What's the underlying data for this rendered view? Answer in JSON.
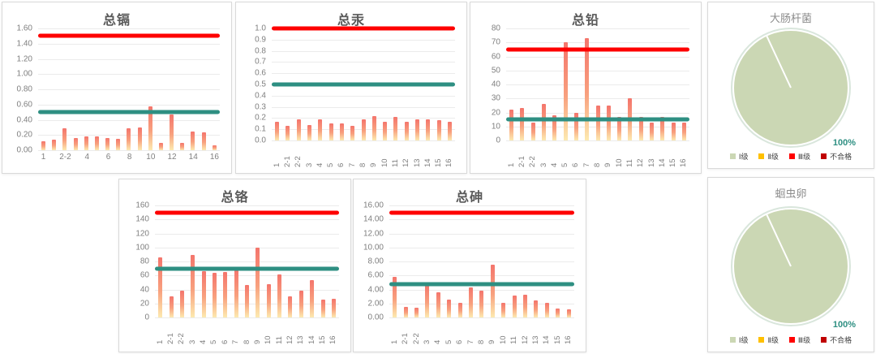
{
  "colors": {
    "red_line": "#fe0000",
    "green_line": "#2e8f82",
    "bar_top": "#f4756c",
    "bar_mid": "#f8a07e",
    "bar_bottom": "#fdeab0",
    "pie_fill": "#cbd7b4",
    "pie_ring": "#d9e6dc",
    "percent_text": "#2e8f82",
    "level1": "#cbd7b4",
    "level2": "#ffc000",
    "level3": "#ff0000",
    "fail": "#c00000"
  },
  "chart_data": [
    {
      "type": "bar",
      "title": "总镉",
      "categories": [
        "1",
        "2-1",
        "2-2",
        "3",
        "4",
        "5",
        "6",
        "7",
        "8",
        "9",
        "10",
        "11",
        "12",
        "13",
        "14",
        "15",
        "16"
      ],
      "values": [
        0.12,
        0.14,
        0.29,
        0.16,
        0.18,
        0.18,
        0.16,
        0.15,
        0.29,
        0.3,
        0.58,
        0.1,
        0.47,
        0.1,
        0.25,
        0.23,
        0.06
      ],
      "red_line": 1.5,
      "green_line": 0.5,
      "ylim": [
        0,
        1.6
      ],
      "yticks": [
        "1.60",
        "1.40",
        "1.20",
        "1.00",
        "0.80",
        "0.60",
        "0.40",
        "0.20",
        "0.00"
      ],
      "xtick_display": [
        "1",
        "",
        "2-2",
        "",
        "4",
        "",
        "6",
        "",
        "8",
        "",
        "10",
        "",
        "12",
        "",
        "14",
        "",
        "16"
      ],
      "rotated_xlabels": false,
      "grid": true,
      "legend_position": "none"
    },
    {
      "type": "bar",
      "title": "总汞",
      "categories": [
        "1",
        "2-1",
        "2-2",
        "3",
        "4",
        "5",
        "6",
        "7",
        "8",
        "9",
        "10",
        "11",
        "12",
        "13",
        "14",
        "15",
        "16"
      ],
      "values": [
        0.17,
        0.13,
        0.19,
        0.14,
        0.19,
        0.15,
        0.15,
        0.13,
        0.19,
        0.22,
        0.17,
        0.21,
        0.17,
        0.19,
        0.19,
        0.18,
        0.17
      ],
      "red_line": 1.0,
      "green_line": 0.5,
      "ylim": [
        0,
        1.0
      ],
      "yticks": [
        "1.0",
        "0.9",
        "0.8",
        "0.7",
        "0.6",
        "0.5",
        "0.4",
        "0.3",
        "0.2",
        "0.1",
        "0.0"
      ],
      "rotated_xlabels": true,
      "grid": true,
      "legend_position": "none"
    },
    {
      "type": "bar",
      "title": "总铅",
      "categories": [
        "1",
        "2-1",
        "2-2",
        "3",
        "4",
        "5",
        "6",
        "7",
        "8",
        "9",
        "10",
        "11",
        "12",
        "13",
        "14",
        "15",
        "16"
      ],
      "values": [
        22,
        23,
        13,
        26,
        18,
        70,
        20,
        73,
        25,
        25,
        17,
        30,
        17,
        13,
        17,
        13,
        13
      ],
      "red_line": 65,
      "green_line": 15,
      "ylim": [
        0,
        80
      ],
      "yticks": [
        "80",
        "70",
        "60",
        "50",
        "40",
        "30",
        "20",
        "10",
        "0"
      ],
      "rotated_xlabels": true,
      "grid": true,
      "legend_position": "none"
    },
    {
      "type": "bar",
      "title": "总铬",
      "categories": [
        "1",
        "2-1",
        "2-2",
        "3",
        "4",
        "5",
        "6",
        "7",
        "8",
        "9",
        "10",
        "11",
        "12",
        "13",
        "14",
        "15",
        "16"
      ],
      "values": [
        86,
        30,
        38,
        89,
        66,
        64,
        65,
        68,
        46,
        100,
        48,
        62,
        30,
        38,
        53,
        26,
        27
      ],
      "red_line": 150,
      "green_line": 70,
      "ylim": [
        0,
        160
      ],
      "yticks": [
        "160",
        "140",
        "120",
        "100",
        "80",
        "60",
        "40",
        "20",
        "0"
      ],
      "rotated_xlabels": true,
      "grid": true,
      "legend_position": "none"
    },
    {
      "type": "bar",
      "title": "总砷",
      "categories": [
        "1",
        "2-1",
        "2-2",
        "3",
        "4",
        "5",
        "6",
        "7",
        "8",
        "9",
        "10",
        "11",
        "12",
        "13",
        "14",
        "15",
        "16"
      ],
      "values": [
        5.8,
        1.5,
        1.4,
        4.6,
        3.6,
        2.6,
        2.1,
        4.3,
        3.8,
        7.5,
        2.1,
        3.1,
        3.3,
        2.4,
        2.1,
        1.3,
        1.2
      ],
      "red_line": 15,
      "green_line": 4.7,
      "ylim": [
        0,
        16
      ],
      "yticks": [
        "16.00",
        "14.00",
        "12.00",
        "10.00",
        "8.00",
        "6.00",
        "4.00",
        "2.00",
        "0.00"
      ],
      "rotated_xlabels": true,
      "grid": true,
      "legend_position": "none"
    },
    {
      "type": "pie",
      "title": "大肠杆菌",
      "categories": [
        "Ⅰ级",
        "Ⅱ级",
        "Ⅲ级",
        "不合格"
      ],
      "values": [
        100,
        0,
        0,
        0
      ],
      "percent": "100%",
      "divider_angle_deg": -25,
      "legend_position": "bottom",
      "legend": [
        {
          "label": "Ⅰ级",
          "color": "#cbd7b4"
        },
        {
          "label": "Ⅱ级",
          "color": "#ffc000"
        },
        {
          "label": "Ⅲ级",
          "color": "#ff0000"
        },
        {
          "label": "不合格",
          "color": "#c00000"
        }
      ]
    },
    {
      "type": "pie",
      "title": "蛔虫卵",
      "categories": [
        "Ⅰ级",
        "Ⅱ级",
        "Ⅲ级",
        "不合格"
      ],
      "values": [
        100,
        0,
        0,
        0
      ],
      "percent": "100%",
      "divider_angle_deg": -25,
      "legend_position": "bottom",
      "legend": [
        {
          "label": "Ⅰ级",
          "color": "#cbd7b4"
        },
        {
          "label": "Ⅱ级",
          "color": "#ffc000"
        },
        {
          "label": "Ⅲ级",
          "color": "#ff0000"
        },
        {
          "label": "不合格",
          "color": "#c00000"
        }
      ]
    }
  ]
}
